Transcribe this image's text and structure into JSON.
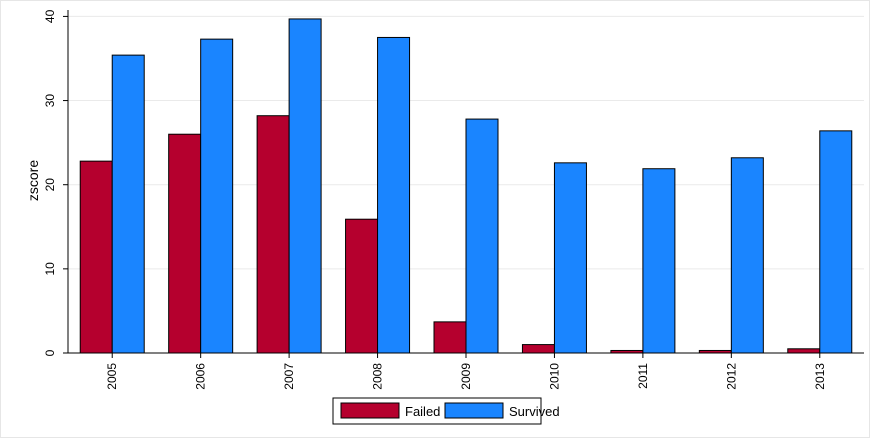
{
  "chart_data": {
    "type": "bar",
    "categories": [
      "2005",
      "2006",
      "2007",
      "2008",
      "2009",
      "2010",
      "2011",
      "2012",
      "2013"
    ],
    "series": [
      {
        "name": "Failed",
        "color": "#b5002e",
        "values": [
          22.8,
          26.0,
          28.2,
          15.9,
          3.7,
          1.0,
          0.3,
          0.3,
          0.5
        ]
      },
      {
        "name": "Survived",
        "color": "#1a85ff",
        "values": [
          35.4,
          37.3,
          39.7,
          37.5,
          27.8,
          22.6,
          21.9,
          23.2,
          26.4
        ]
      }
    ],
    "ylabel": "zscore",
    "xlabel": "",
    "ylim": [
      0,
      41
    ],
    "yticks": [
      "0",
      "10",
      "20",
      "30",
      "40"
    ],
    "grid": true,
    "legend_position": "bottom-center"
  }
}
